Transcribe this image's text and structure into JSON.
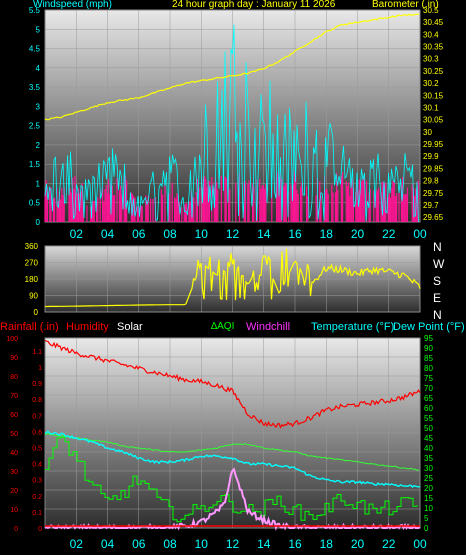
{
  "header": {
    "windspeed_label": "Windspeed (mph)",
    "title": "24 hour graph day : January 11 2026",
    "barometer_label": "Barometer (.in)"
  },
  "colors": {
    "wind": "#00ffff",
    "gust": "#ff1493",
    "barometer": "#ffff00",
    "direction": "#ffff00",
    "rainfall": "#ff0000",
    "humidity": "#ff0000",
    "solar": "#ffffff",
    "aqi": "#00ff00",
    "windchill": "#ff33ff",
    "temperature": "#00ffff",
    "dewpoint": "#33ff33",
    "axis_text": "#00ffff",
    "panel_bg_top": "#e6e6e6",
    "panel_bg_bottom": "#3a3a3a"
  },
  "x_ticks": [
    "02",
    "04",
    "06",
    "08",
    "10",
    "12",
    "14",
    "16",
    "18",
    "20",
    "22",
    "00"
  ],
  "direction_letters": [
    "N",
    "W",
    "S",
    "E",
    "N"
  ],
  "bottom_legend": {
    "rainfall": "Rainfall (.in)",
    "humidity": "Humidity",
    "solar": "Solar",
    "aqi": "AQI",
    "windchill": "Windchill",
    "temperature": "Temperature (°F)",
    "dewpoint": "Dew Point (°F)"
  },
  "chart_data": [
    {
      "type": "line",
      "name": "wind_barometer",
      "x_range": [
        0,
        24
      ],
      "y_left": {
        "label": "Windspeed (mph)",
        "range": [
          0,
          5.5
        ],
        "ticks": [
          "0",
          "0.5",
          "1",
          "1.5",
          "2",
          "2.5",
          "3",
          "3.5",
          "4",
          "4.5",
          "5",
          "5.5"
        ]
      },
      "y_right": {
        "label": "Barometer (.in)",
        "range": [
          29.63,
          30.5
        ],
        "ticks": [
          "29.65",
          "29.7",
          "29.75",
          "29.8",
          "29.85",
          "29.9",
          "29.95",
          "30",
          "30.05",
          "30.1",
          "30.15",
          "30.2",
          "30.25",
          "30.3",
          "30.35",
          "30.4",
          "30.45",
          "30.5"
        ]
      },
      "series": [
        {
          "key": "barometer",
          "x": [
            0,
            1,
            2,
            3,
            4,
            5,
            6,
            7,
            8,
            9,
            10,
            11,
            12,
            13,
            14,
            15,
            16,
            17,
            18,
            19,
            20,
            21,
            22,
            23,
            24
          ],
          "y": [
            30.05,
            30.06,
            30.08,
            30.1,
            30.12,
            30.13,
            30.14,
            30.16,
            30.18,
            30.2,
            30.21,
            30.22,
            30.23,
            30.24,
            30.26,
            30.29,
            30.33,
            30.37,
            30.41,
            30.44,
            30.45,
            30.46,
            30.47,
            30.48,
            30.48
          ]
        },
        {
          "key": "wind",
          "x": [
            0,
            1,
            2,
            3,
            4,
            5,
            6,
            7,
            8,
            9,
            10,
            11,
            12,
            13,
            14,
            15,
            16,
            17,
            18,
            19,
            20,
            21,
            22,
            23,
            24
          ],
          "y": [
            1.0,
            1.5,
            1.2,
            0.8,
            1.5,
            1.2,
            0.5,
            1.0,
            1.5,
            0.8,
            2.0,
            3.0,
            4.0,
            3.5,
            3.0,
            2.5,
            2.0,
            2.5,
            2.0,
            1.5,
            1.2,
            1.5,
            1.0,
            1.5,
            1.0
          ]
        },
        {
          "key": "gust",
          "x": [
            0,
            1,
            2,
            3,
            4,
            5,
            6,
            7,
            8,
            9,
            10,
            11,
            12,
            13,
            14,
            15,
            16,
            17,
            18,
            19,
            20,
            21,
            22,
            23,
            24
          ],
          "y": [
            1.0,
            0.8,
            1.2,
            0.5,
            1.0,
            1.2,
            0.5,
            0.8,
            1.0,
            0.5,
            1.2,
            1.2,
            1.2,
            1.2,
            1.0,
            1.2,
            1.2,
            1.0,
            1.2,
            1.2,
            1.0,
            1.2,
            1.0,
            1.2,
            1.0
          ]
        }
      ]
    },
    {
      "type": "line",
      "name": "wind_direction",
      "x_range": [
        0,
        24
      ],
      "y_left": {
        "range": [
          0,
          360
        ],
        "ticks": [
          "0",
          "90",
          "180",
          "270",
          "360"
        ]
      },
      "series": [
        {
          "key": "direction",
          "x": [
            0,
            2,
            4,
            6,
            8,
            9,
            9.5,
            10,
            11,
            12,
            13,
            14,
            15,
            16,
            17,
            18,
            19,
            20,
            21,
            22,
            23,
            24
          ],
          "y": [
            30,
            32,
            35,
            38,
            40,
            40,
            150,
            270,
            200,
            260,
            150,
            300,
            100,
            280,
            150,
            240,
            230,
            210,
            230,
            220,
            200,
            135
          ]
        }
      ]
    },
    {
      "type": "line",
      "name": "weather",
      "x_range": [
        0,
        24
      ],
      "y_left": {
        "label": "Rainfall (.in) / Humidity",
        "range": [
          0,
          100
        ],
        "ticks": [
          "0",
          "10",
          "20",
          "30",
          "40",
          "50",
          "60",
          "70",
          "80",
          "90",
          "100"
        ],
        "rain_ticks": [
          "0",
          "0.1",
          "0.2",
          "0.3",
          "0.4",
          "0.5",
          "0.6",
          "0.7",
          "0.8",
          "0.9",
          "1",
          "1.1"
        ]
      },
      "y_right": {
        "label": "Temperature (°F)",
        "range": [
          0,
          95
        ],
        "ticks": [
          "0",
          "5",
          "10",
          "15",
          "20",
          "25",
          "30",
          "35",
          "40",
          "45",
          "50",
          "55",
          "60",
          "65",
          "70",
          "75",
          "80",
          "85",
          "90",
          "95"
        ]
      },
      "series": [
        {
          "key": "humidity",
          "x": [
            0,
            1,
            2,
            3,
            4,
            5,
            6,
            7,
            8,
            9,
            10,
            11,
            12,
            13,
            14,
            15,
            16,
            17,
            18,
            19,
            20,
            21,
            22,
            23,
            24
          ],
          "y": [
            98,
            95,
            92,
            90,
            88,
            86,
            84,
            82,
            80,
            78,
            77,
            75,
            72,
            60,
            55,
            54,
            55,
            58,
            62,
            64,
            65,
            66,
            67,
            69,
            72
          ]
        },
        {
          "key": "temperature",
          "x": [
            0,
            1,
            2,
            3,
            4,
            5,
            6,
            7,
            8,
            9,
            10,
            11,
            12,
            13,
            14,
            15,
            16,
            17,
            18,
            19,
            20,
            21,
            22,
            23,
            24
          ],
          "y": [
            48,
            47,
            45,
            43,
            40,
            38,
            35,
            33,
            33,
            34,
            36,
            36,
            35,
            32,
            32,
            31,
            30,
            26,
            24,
            23,
            23,
            22,
            22,
            21,
            21
          ]
        },
        {
          "key": "dewpoint",
          "x": [
            0,
            1,
            2,
            3,
            4,
            5,
            6,
            7,
            8,
            9,
            10,
            11,
            12,
            13,
            14,
            15,
            16,
            17,
            18,
            19,
            20,
            21,
            22,
            23,
            24
          ],
          "y": [
            47,
            46,
            45,
            44,
            43,
            41,
            40,
            39,
            38,
            38,
            39,
            40,
            42,
            42,
            40,
            39,
            38,
            36,
            35,
            34,
            33,
            32,
            31,
            30,
            29
          ]
        },
        {
          "key": "aqi",
          "x": [
            0,
            1,
            2,
            3,
            4,
            5,
            6,
            7,
            8,
            9,
            10,
            11,
            12,
            13,
            14,
            15,
            16,
            17,
            18,
            19,
            20,
            21,
            22,
            23,
            24
          ],
          "y": [
            30,
            45,
            35,
            20,
            12,
            18,
            25,
            15,
            8,
            6,
            10,
            15,
            12,
            8,
            10,
            14,
            8,
            6,
            10,
            15,
            12,
            8,
            10,
            12,
            10
          ]
        },
        {
          "key": "solar",
          "x": [
            0,
            8,
            9,
            10,
            11,
            11.5,
            12,
            12.5,
            13,
            14,
            15,
            16,
            24
          ],
          "y": [
            0,
            0,
            1,
            3,
            8,
            12,
            30,
            20,
            8,
            4,
            1,
            0,
            0
          ]
        }
      ]
    }
  ]
}
